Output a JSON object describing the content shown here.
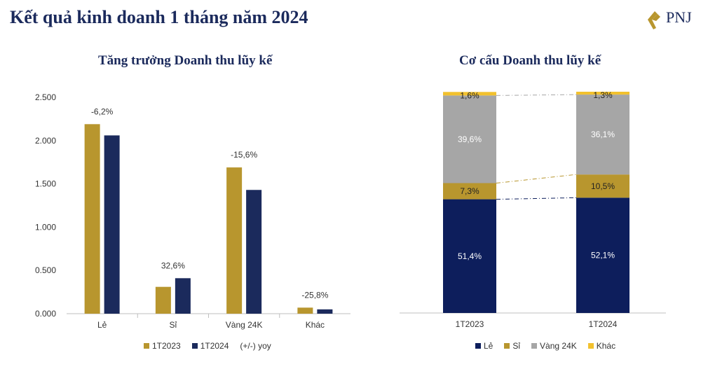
{
  "header": {
    "title": "Kết quả kinh doanh 1 tháng năm 2024",
    "logo_text": "PNJ"
  },
  "colors": {
    "gold": "#b8962e",
    "navy": "#1b2a5c",
    "dark_navy": "#0d1e5c",
    "grey": "#a6a6a6",
    "yellow": "#f2c12e"
  },
  "chart_data": [
    {
      "type": "bar",
      "title": "Tăng trưởng Doanh thu lũy kế",
      "categories": [
        "Lẻ",
        "Sỉ",
        "Vàng 24K",
        "Khác"
      ],
      "series": [
        {
          "name": "1T2023",
          "values": [
            2.19,
            0.31,
            1.69,
            0.07
          ]
        },
        {
          "name": "1T2024",
          "values": [
            2.06,
            0.41,
            1.43,
            0.05
          ]
        }
      ],
      "annotations": [
        "-6,2%",
        "32,6%",
        "-15,6%",
        "-25,8%"
      ],
      "annotation_legend": "(+/-) yoy",
      "y_ticks": [
        "0.000",
        "0.500",
        "1.000",
        "1.500",
        "2.000",
        "2.500"
      ],
      "ylim": [
        0,
        2.5
      ],
      "xlabel": "",
      "ylabel": "",
      "legend_position": "bottom"
    },
    {
      "type": "bar",
      "stacked": true,
      "title": "Cơ cấu Doanh thu lũy kế",
      "categories": [
        "1T2023",
        "1T2024"
      ],
      "series": [
        {
          "name": "Lẻ",
          "values": [
            51.4,
            52.1
          ],
          "labels": [
            "51,4%",
            "52,1%"
          ]
        },
        {
          "name": "Sỉ",
          "values": [
            7.3,
            10.5
          ],
          "labels": [
            "7,3%",
            "10,5%"
          ]
        },
        {
          "name": "Vàng 24K",
          "values": [
            39.6,
            36.1
          ],
          "labels": [
            "39,6%",
            "36,1%"
          ]
        },
        {
          "name": "Khác",
          "values": [
            1.6,
            1.3
          ],
          "labels": [
            "1,6%",
            "1,3%"
          ]
        }
      ],
      "ylim": [
        0,
        100
      ],
      "legend_position": "bottom"
    }
  ]
}
